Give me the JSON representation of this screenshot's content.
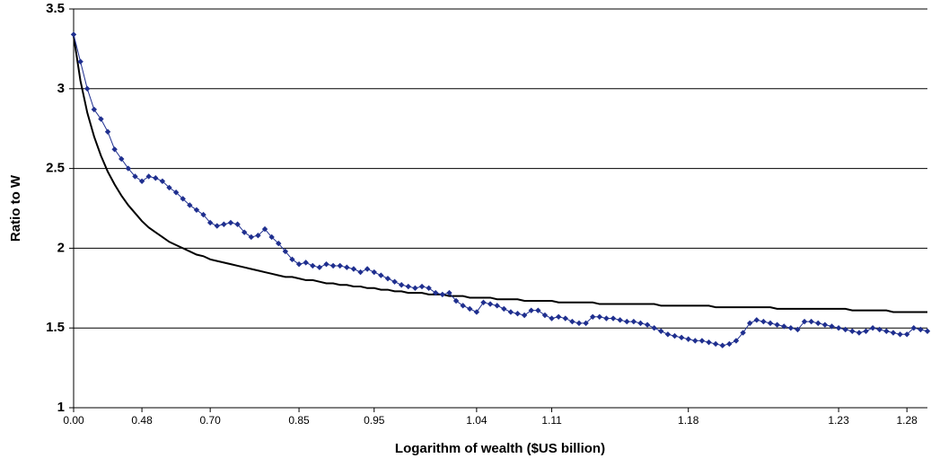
{
  "chart_data": {
    "type": "line",
    "x_label": "Logarithm of wealth ($US billion)",
    "y_label": "Ratio to W",
    "categories": [
      "0.00",
      null,
      null,
      null,
      null,
      null,
      null,
      null,
      null,
      null,
      "0.48",
      null,
      null,
      null,
      null,
      null,
      null,
      null,
      null,
      null,
      "0.70",
      null,
      null,
      null,
      null,
      null,
      null,
      null,
      null,
      null,
      null,
      null,
      null,
      "0.85",
      null,
      null,
      null,
      null,
      null,
      null,
      null,
      null,
      null,
      null,
      "0.95",
      null,
      null,
      null,
      null,
      null,
      null,
      null,
      null,
      null,
      null,
      null,
      null,
      null,
      null,
      "1.04",
      null,
      null,
      null,
      null,
      null,
      null,
      null,
      null,
      null,
      null,
      "1.11",
      null,
      null,
      null,
      null,
      null,
      null,
      null,
      null,
      null,
      null,
      null,
      null,
      null,
      null,
      null,
      null,
      null,
      null,
      null,
      "1.18",
      null,
      null,
      null,
      null,
      null,
      null,
      null,
      null,
      null,
      null,
      null,
      null,
      null,
      null,
      null,
      null,
      null,
      null,
      null,
      null,
      null,
      "1.23",
      null,
      null,
      null,
      null,
      null,
      null,
      null,
      null,
      null,
      "1.28",
      null,
      null,
      null
    ],
    "series": [
      {
        "color": "#1f2f8f",
        "marker": "diamond",
        "values": [
          3.34,
          3.17,
          3.0,
          2.87,
          2.81,
          2.73,
          2.62,
          2.56,
          2.5,
          2.45,
          2.42,
          2.45,
          2.44,
          2.42,
          2.38,
          2.35,
          2.31,
          2.27,
          2.24,
          2.21,
          2.16,
          2.14,
          2.15,
          2.16,
          2.15,
          2.1,
          2.07,
          2.08,
          2.12,
          2.07,
          2.03,
          1.98,
          1.93,
          1.9,
          1.91,
          1.89,
          1.88,
          1.9,
          1.89,
          1.89,
          1.88,
          1.87,
          1.85,
          1.87,
          1.85,
          1.83,
          1.81,
          1.79,
          1.77,
          1.76,
          1.75,
          1.76,
          1.75,
          1.72,
          1.71,
          1.72,
          1.67,
          1.64,
          1.62,
          1.6,
          1.66,
          1.65,
          1.64,
          1.62,
          1.6,
          1.59,
          1.58,
          1.61,
          1.61,
          1.58,
          1.56,
          1.57,
          1.56,
          1.54,
          1.53,
          1.53,
          1.57,
          1.57,
          1.56,
          1.56,
          1.55,
          1.54,
          1.54,
          1.53,
          1.52,
          1.5,
          1.48,
          1.46,
          1.45,
          1.44,
          1.43,
          1.42,
          1.42,
          1.41,
          1.4,
          1.39,
          1.4,
          1.42,
          1.47,
          1.53,
          1.55,
          1.54,
          1.53,
          1.52,
          1.51,
          1.5,
          1.49,
          1.54,
          1.54,
          1.53,
          1.52,
          1.51,
          1.5,
          1.49,
          1.48,
          1.47,
          1.48,
          1.5,
          1.49,
          1.48,
          1.47,
          1.46,
          1.46,
          1.5,
          1.49,
          1.48
        ]
      },
      {
        "color": "#000000",
        "marker": "none",
        "values": [
          3.33,
          3.05,
          2.85,
          2.7,
          2.58,
          2.48,
          2.4,
          2.33,
          2.27,
          2.22,
          2.17,
          2.13,
          2.1,
          2.07,
          2.04,
          2.02,
          2.0,
          1.98,
          1.96,
          1.95,
          1.93,
          1.92,
          1.91,
          1.9,
          1.89,
          1.88,
          1.87,
          1.86,
          1.85,
          1.84,
          1.83,
          1.82,
          1.82,
          1.81,
          1.8,
          1.8,
          1.79,
          1.78,
          1.78,
          1.77,
          1.77,
          1.76,
          1.76,
          1.75,
          1.75,
          1.74,
          1.74,
          1.73,
          1.73,
          1.72,
          1.72,
          1.72,
          1.71,
          1.71,
          1.71,
          1.7,
          1.7,
          1.7,
          1.69,
          1.69,
          1.69,
          1.69,
          1.68,
          1.68,
          1.68,
          1.68,
          1.67,
          1.67,
          1.67,
          1.67,
          1.67,
          1.66,
          1.66,
          1.66,
          1.66,
          1.66,
          1.66,
          1.65,
          1.65,
          1.65,
          1.65,
          1.65,
          1.65,
          1.65,
          1.65,
          1.65,
          1.64,
          1.64,
          1.64,
          1.64,
          1.64,
          1.64,
          1.64,
          1.64,
          1.63,
          1.63,
          1.63,
          1.63,
          1.63,
          1.63,
          1.63,
          1.63,
          1.63,
          1.62,
          1.62,
          1.62,
          1.62,
          1.62,
          1.62,
          1.62,
          1.62,
          1.62,
          1.62,
          1.62,
          1.61,
          1.61,
          1.61,
          1.61,
          1.61,
          1.61,
          1.6,
          1.6,
          1.6,
          1.6,
          1.6,
          1.6
        ]
      }
    ],
    "ylim": [
      1,
      3.5
    ],
    "yticks": [
      1,
      1.5,
      2,
      2.5,
      3,
      3.5
    ],
    "grid": true
  }
}
